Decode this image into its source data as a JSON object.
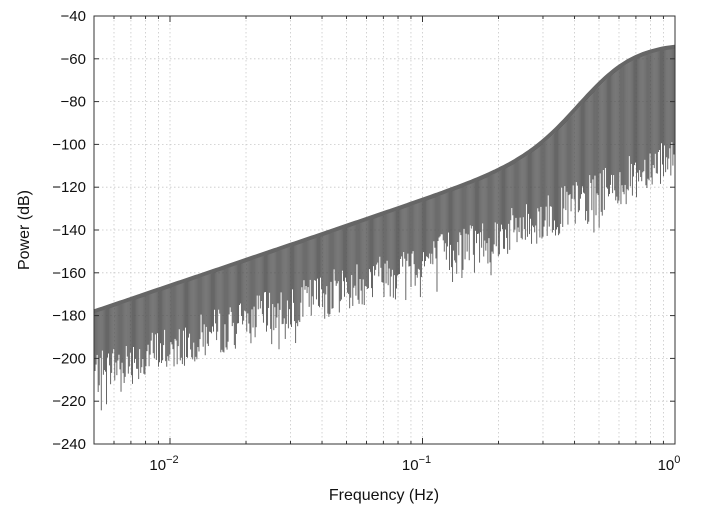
{
  "chart_data": {
    "type": "line",
    "title": "",
    "xlabel": "Frequency (Hz)",
    "ylabel": "Power (dB)",
    "x_scale": "log",
    "xlim": [
      0.005,
      1
    ],
    "ylim": [
      -240,
      -40
    ],
    "grid": true,
    "legend": "none",
    "yticks": [
      -40,
      -60,
      -80,
      -100,
      -120,
      -140,
      -160,
      -180,
      -200,
      -220,
      -240
    ],
    "ytick_labels": [
      "−40",
      "−60",
      "−80",
      "−100",
      "−120",
      "−140",
      "−160",
      "−180",
      "−200",
      "−220",
      "−240"
    ],
    "xticks": [
      0.01,
      0.1,
      1
    ],
    "xtick_labels": [
      {
        "base": "10",
        "exp": "−2"
      },
      {
        "base": "10",
        "exp": "−1"
      },
      {
        "base": "10",
        "exp": "0"
      }
    ],
    "series": [
      {
        "color": "#555555",
        "envelope_upper": {
          "x": [
            0.005,
            0.01,
            0.02,
            0.05,
            0.1,
            0.2,
            0.3,
            0.5,
            0.7,
            1.0
          ],
          "y": [
            -178,
            -166,
            -154,
            -138,
            -126,
            -114,
            -107,
            -96,
            -89,
            -53
          ]
        },
        "envelope_lower": {
          "x": [
            0.005,
            0.01,
            0.02,
            0.05,
            0.1,
            0.2,
            0.3,
            0.5,
            0.7,
            1.0
          ],
          "y": [
            -212,
            -200,
            -188,
            -172,
            -160,
            -148,
            -140,
            -128,
            -120,
            -108
          ]
        }
      }
    ]
  },
  "colors": {
    "series": "#555555",
    "grid": "#c8c8c8",
    "axes": "#333333"
  }
}
